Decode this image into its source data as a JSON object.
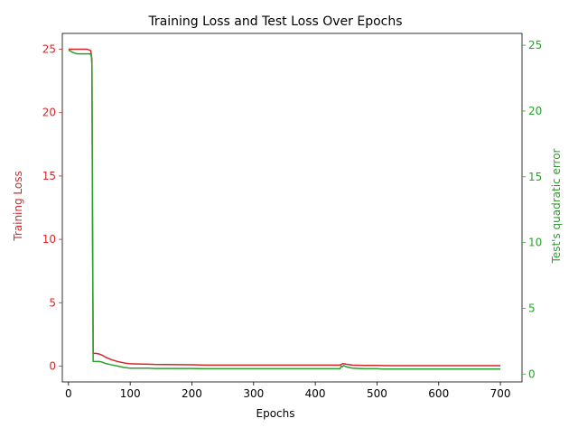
{
  "chart_data": {
    "type": "line",
    "title": "Training Loss and Test Loss Over Epochs",
    "xlabel": "Epochs",
    "xlim": [
      -10,
      735
    ],
    "xticks": [
      0,
      100,
      200,
      300,
      400,
      500,
      600,
      700
    ],
    "grid": false,
    "legend": "none",
    "axes": {
      "left": {
        "label": "Training Loss",
        "color": "#d62728",
        "ylim": [
          -1.25,
          26.25
        ],
        "ticks": [
          0,
          5,
          10,
          15,
          20,
          25
        ]
      },
      "right": {
        "label": "Test's quadratic error",
        "color": "#2ca02c",
        "ylim": [
          -0.6,
          25.9
        ],
        "ticks": [
          0,
          5,
          10,
          15,
          20,
          25
        ]
      }
    },
    "series": [
      {
        "axis": "left",
        "color": "#d62728",
        "x": [
          0,
          10,
          20,
          30,
          36,
          38,
          39,
          40,
          45,
          50,
          55,
          60,
          70,
          80,
          90,
          100,
          120,
          130,
          140,
          160,
          200,
          220,
          300,
          400,
          440,
          445,
          450,
          460,
          480,
          500,
          510,
          520,
          600,
          700
        ],
        "y": [
          25.0,
          25.0,
          25.0,
          25.0,
          24.9,
          24.2,
          12.0,
          1.0,
          1.0,
          0.95,
          0.85,
          0.7,
          0.5,
          0.35,
          0.25,
          0.18,
          0.16,
          0.15,
          0.13,
          0.12,
          0.1,
          0.08,
          0.08,
          0.08,
          0.08,
          0.2,
          0.15,
          0.08,
          0.05,
          0.05,
          0.04,
          0.03,
          0.03,
          0.03
        ]
      },
      {
        "axis": "right",
        "color": "#2ca02c",
        "x": [
          0,
          2,
          5,
          10,
          15,
          20,
          30,
          35,
          37,
          38,
          39,
          40,
          45,
          50,
          55,
          60,
          70,
          80,
          90,
          100,
          120,
          130,
          140,
          160,
          200,
          220,
          300,
          400,
          440,
          442,
          444,
          446,
          450,
          455,
          460,
          470,
          480,
          500,
          510,
          520,
          600,
          700
        ],
        "y": [
          24.6,
          24.6,
          24.5,
          24.4,
          24.35,
          24.35,
          24.35,
          24.35,
          24.2,
          23.5,
          10.0,
          0.95,
          0.95,
          0.95,
          0.9,
          0.8,
          0.7,
          0.6,
          0.5,
          0.45,
          0.45,
          0.45,
          0.42,
          0.42,
          0.42,
          0.4,
          0.4,
          0.4,
          0.4,
          0.6,
          0.55,
          0.65,
          0.55,
          0.5,
          0.45,
          0.42,
          0.4,
          0.4,
          0.38,
          0.38,
          0.38,
          0.38
        ]
      }
    ]
  }
}
